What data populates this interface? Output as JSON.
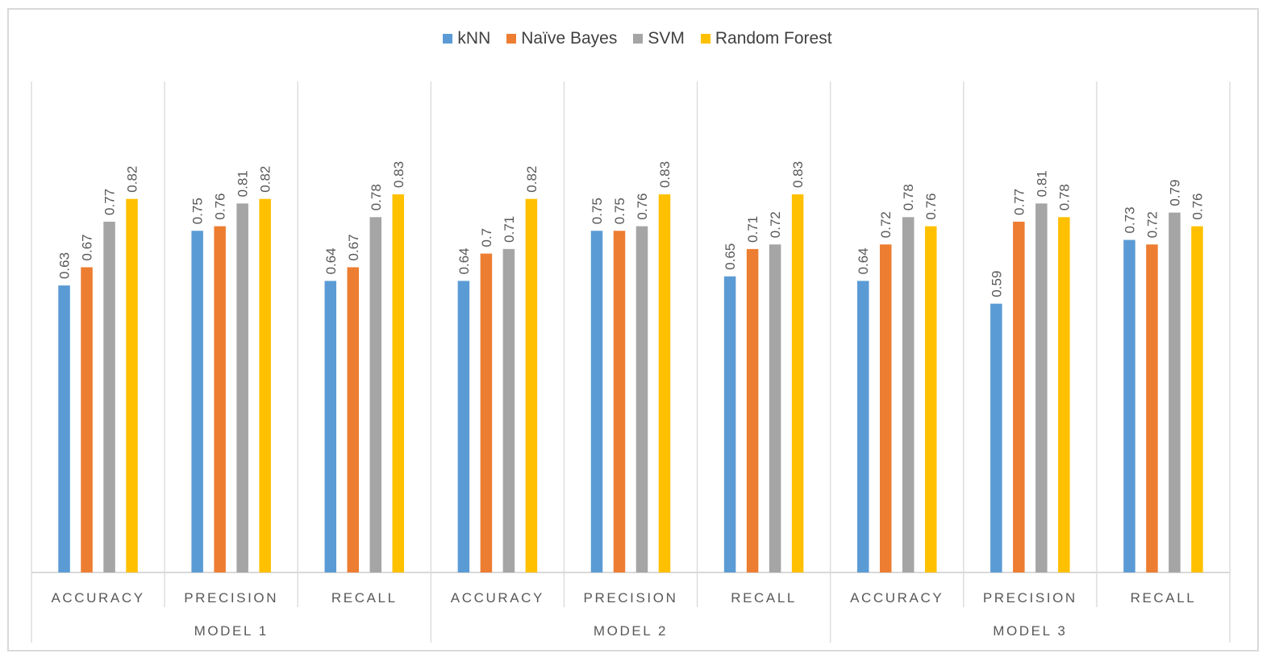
{
  "chart_data": {
    "type": "bar",
    "title": "",
    "xlabel": "",
    "ylabel": "",
    "ylim": [
      0,
      1
    ],
    "grid": false,
    "legend_position": "top",
    "groups": [
      "MODEL 1",
      "MODEL 2",
      "MODEL 3"
    ],
    "categories": [
      "ACCURACY",
      "PRECISION",
      "RECALL",
      "ACCURACY",
      "PRECISION",
      "RECALL",
      "ACCURACY",
      "PRECISION",
      "RECALL"
    ],
    "series": [
      {
        "name": "kNN",
        "color": "#5b9bd5",
        "values": [
          0.63,
          0.75,
          0.64,
          0.64,
          0.75,
          0.65,
          0.64,
          0.59,
          0.73
        ],
        "labels": [
          "0.63",
          "0.75",
          "0.64",
          "0.64",
          "0.75",
          "0.65",
          "0.64",
          "0.59",
          "0.73"
        ]
      },
      {
        "name": "Naïve Bayes",
        "color": "#ed7d31",
        "values": [
          0.67,
          0.76,
          0.67,
          0.7,
          0.75,
          0.71,
          0.72,
          0.77,
          0.72
        ],
        "labels": [
          "0.67",
          "0.76",
          "0.67",
          "0.7",
          "0.75",
          "0.71",
          "0.72",
          "0.77",
          "0.72"
        ]
      },
      {
        "name": "SVM",
        "color": "#a5a5a5",
        "values": [
          0.77,
          0.81,
          0.78,
          0.71,
          0.76,
          0.72,
          0.78,
          0.81,
          0.79
        ],
        "labels": [
          "0.77",
          "0.81",
          "0.78",
          "0.71",
          "0.76",
          "0.72",
          "0.78",
          "0.81",
          "0.79"
        ]
      },
      {
        "name": "Random Forest",
        "color": "#ffc000",
        "values": [
          0.82,
          0.82,
          0.83,
          0.82,
          0.83,
          0.83,
          0.76,
          0.78,
          0.76
        ],
        "labels": [
          "0.82",
          "0.82",
          "0.83",
          "0.82",
          "0.83",
          "0.83",
          "0.76",
          "0.78",
          "0.76"
        ]
      }
    ]
  }
}
